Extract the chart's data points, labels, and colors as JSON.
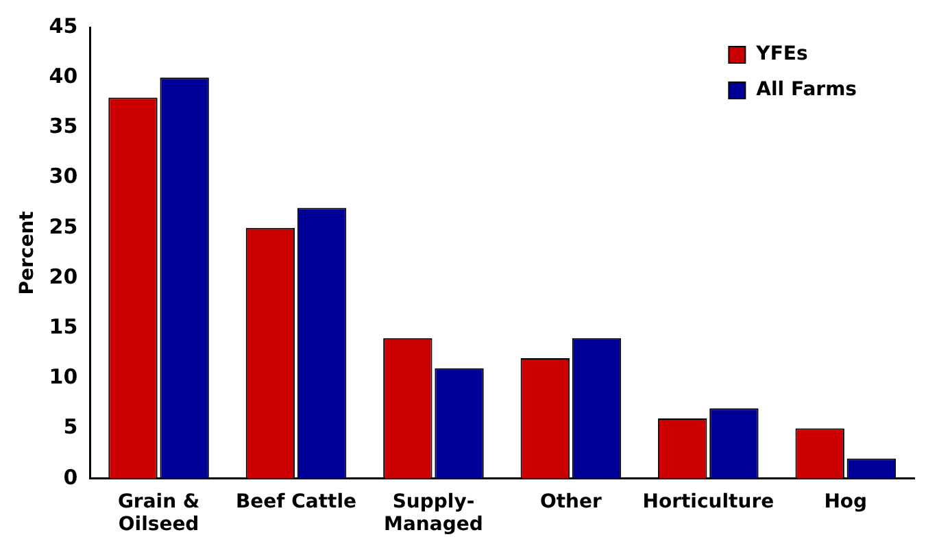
{
  "chart_data": {
    "type": "bar",
    "ylabel": "Percent",
    "categories": [
      "Grain &\nOilseed",
      "Beef Cattle",
      "Supply-\nManaged",
      "Other",
      "Horticulture",
      "Hog"
    ],
    "series": [
      {
        "name": "YFEs",
        "color": "#cc0000",
        "values": [
          38,
          25,
          14,
          12,
          6,
          5
        ]
      },
      {
        "name": "All Farms",
        "color": "#000099",
        "values": [
          40,
          27,
          11,
          14,
          7,
          2
        ]
      }
    ],
    "ylim": [
      0,
      45
    ],
    "yticks": [
      0,
      5,
      10,
      15,
      20,
      25,
      30,
      35,
      40,
      45
    ],
    "grid": false,
    "legend": "top right"
  }
}
